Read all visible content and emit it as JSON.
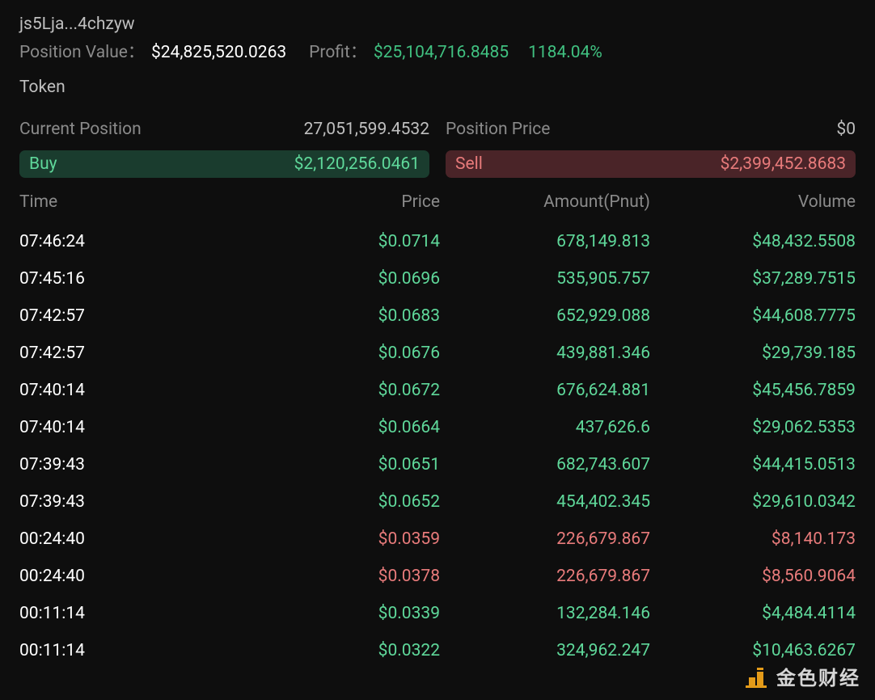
{
  "header": {
    "wallet": "js5Lja...4chzyw",
    "position_value_label": "Position Value：",
    "position_value": "$24,825,520.0263",
    "profit_label": "Profit：",
    "profit_value": "$25,104,716.8485",
    "profit_pct": "1184.04%"
  },
  "token_label": "Token",
  "position": {
    "current_label": "Current Position",
    "current_value": "27,051,599.4532",
    "price_label": "Position Price",
    "price_value": "$0"
  },
  "buy": {
    "label": "Buy",
    "value": "$2,120,256.0461"
  },
  "sell": {
    "label": "Sell",
    "value": "$2,399,452.8683"
  },
  "columns": {
    "time": "Time",
    "price": "Price",
    "amount": "Amount(Pnut)",
    "volume": "Volume"
  },
  "rows": [
    {
      "time": "07:46:24",
      "price": "$0.0714",
      "amount": "678,149.813",
      "volume": "$48,432.5508",
      "side": "buy"
    },
    {
      "time": "07:45:16",
      "price": "$0.0696",
      "amount": "535,905.757",
      "volume": "$37,289.7515",
      "side": "buy"
    },
    {
      "time": "07:42:57",
      "price": "$0.0683",
      "amount": "652,929.088",
      "volume": "$44,608.7775",
      "side": "buy"
    },
    {
      "time": "07:42:57",
      "price": "$0.0676",
      "amount": "439,881.346",
      "volume": "$29,739.185",
      "side": "buy"
    },
    {
      "time": "07:40:14",
      "price": "$0.0672",
      "amount": "676,624.881",
      "volume": "$45,456.7859",
      "side": "buy"
    },
    {
      "time": "07:40:14",
      "price": "$0.0664",
      "amount": "437,626.6",
      "volume": "$29,062.5353",
      "side": "buy"
    },
    {
      "time": "07:39:43",
      "price": "$0.0651",
      "amount": "682,743.607",
      "volume": "$44,415.0513",
      "side": "buy"
    },
    {
      "time": "07:39:43",
      "price": "$0.0652",
      "amount": "454,402.345",
      "volume": "$29,610.0342",
      "side": "buy"
    },
    {
      "time": "00:24:40",
      "price": "$0.0359",
      "amount": "226,679.867",
      "volume": "$8,140.173",
      "side": "sell"
    },
    {
      "time": "00:24:40",
      "price": "$0.0378",
      "amount": "226,679.867",
      "volume": "$8,560.9064",
      "side": "sell"
    },
    {
      "time": "00:11:14",
      "price": "$0.0339",
      "amount": "132,284.146",
      "volume": "$4,484.4114",
      "side": "buy"
    },
    {
      "time": "00:11:14",
      "price": "$0.0322",
      "amount": "324,962.247",
      "volume": "$10,463.6267",
      "side": "buy"
    }
  ],
  "watermark": {
    "text": "金色财经"
  },
  "colors": {
    "background": "#0e0e0e",
    "text_primary": "#ffffff",
    "text_secondary": "#8a8a8a",
    "text_muted": "#bfbfbf",
    "green": "#5fd89a",
    "green_soft": "#40c080",
    "red": "#e87b7b",
    "buy_bg": "#1a3c2e",
    "sell_bg": "#4a2428",
    "watermark_accent": "#f7a71b"
  }
}
